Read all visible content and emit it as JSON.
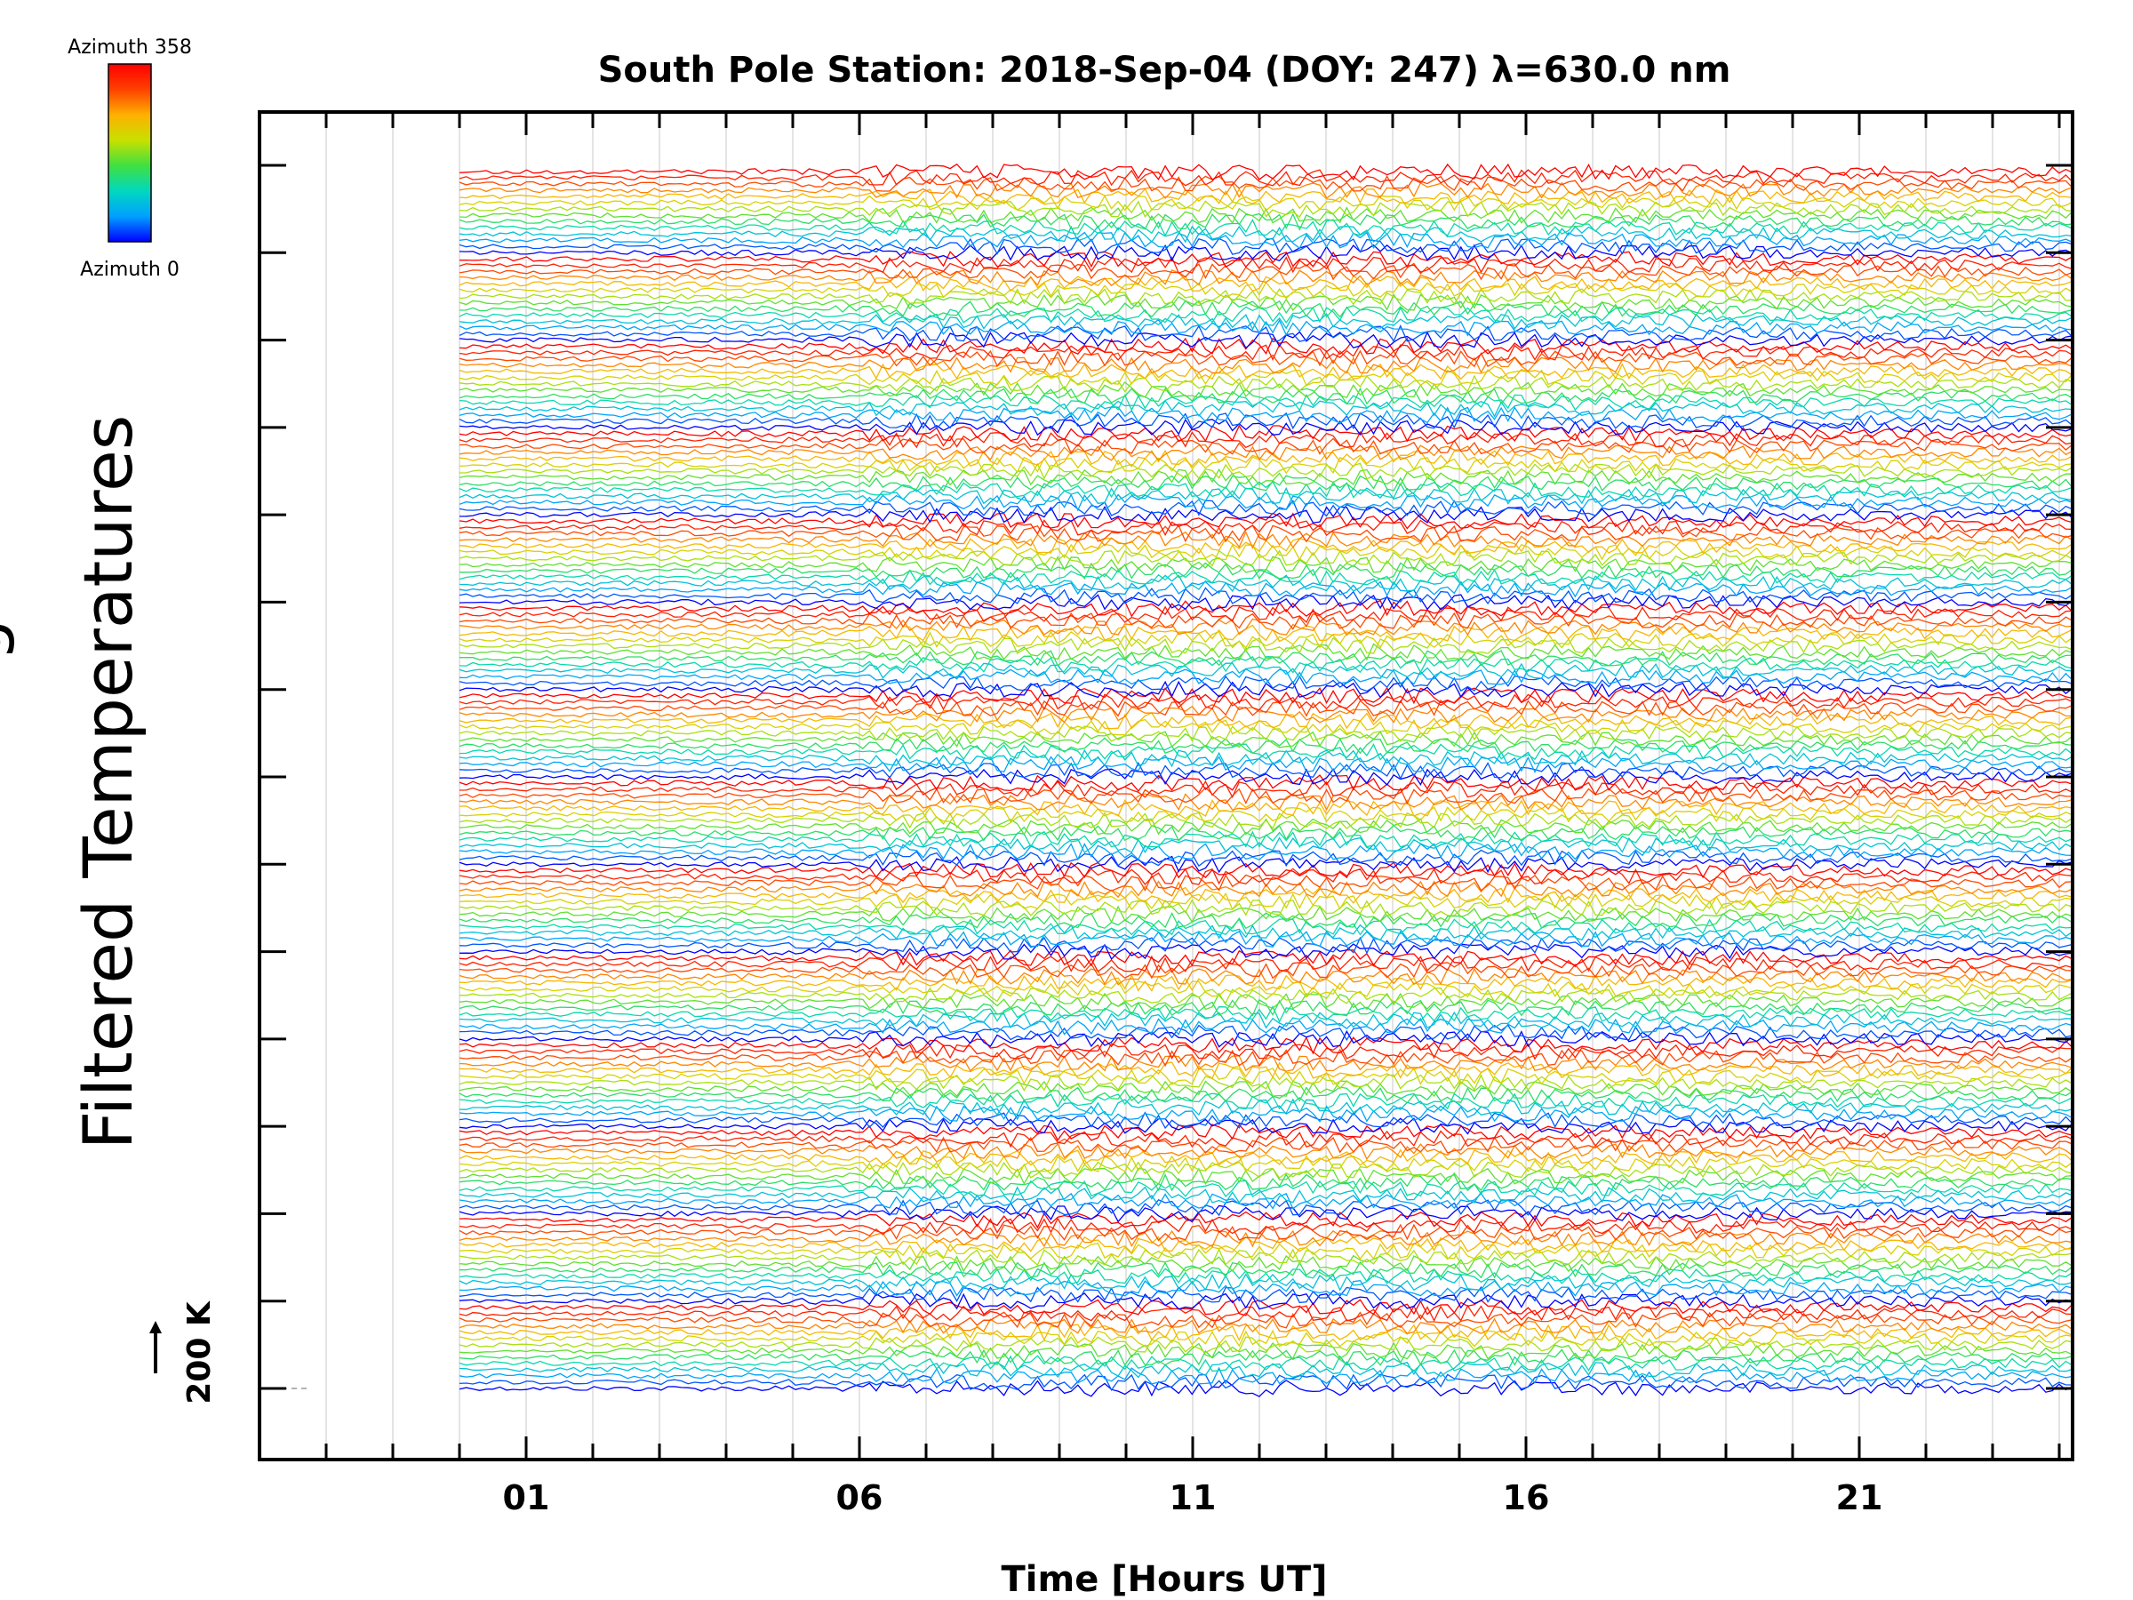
{
  "chart_data": {
    "type": "line",
    "title": "South Pole Station: 2018-Sep-04 (DOY: 247) λ=630.0 nm",
    "xlabel": "Time [Hours UT]",
    "ylabel": "Filtered Temperatures",
    "ylabel_partial": "g",
    "x_range_hours": [
      -3.0,
      24.2
    ],
    "data_x_start_hours": 0.0,
    "data_x_end_hours": 24.2,
    "x_ticks": [
      {
        "value": 1,
        "label": "01"
      },
      {
        "value": 6,
        "label": "06"
      },
      {
        "value": 11,
        "label": "11"
      },
      {
        "value": 16,
        "label": "16"
      },
      {
        "value": 21,
        "label": "21"
      }
    ],
    "x_minor_tick_step_hours": 1,
    "scale_bar": {
      "label": "200 K",
      "value": 200
    },
    "colorbar": {
      "top_label": "Azimuth 358",
      "bottom_label": "Azimuth 0",
      "min": 0,
      "max": 358,
      "colormap": "rainbow",
      "colors": [
        "#0000ff",
        "#00a0ff",
        "#00d8c0",
        "#40e040",
        "#c8e000",
        "#ffb000",
        "#ff4000",
        "#ff0000"
      ]
    },
    "traces": {
      "stacked_offset_groups": 14,
      "traces_per_group": 14,
      "azimuth_order_bottom_to_top": "azimuth 0 (blue) up to azimuth 358 (red), repeating"
    },
    "grid": true,
    "legend": "none"
  }
}
